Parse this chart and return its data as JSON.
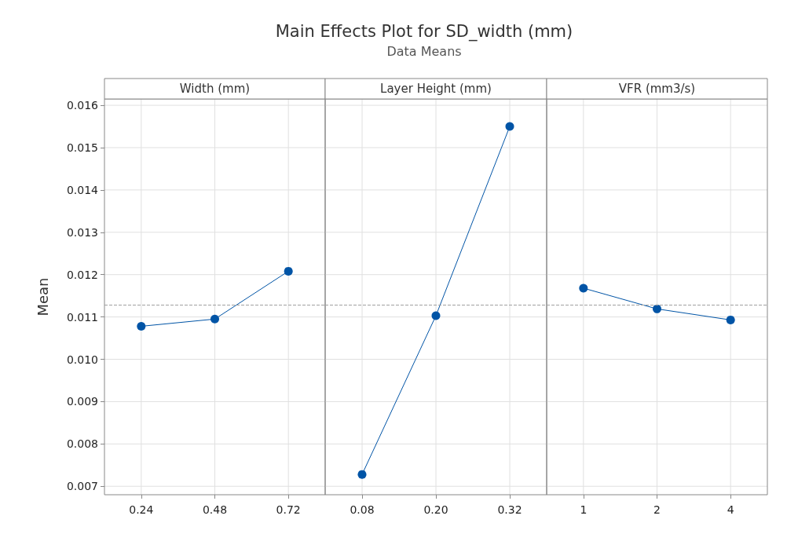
{
  "chart_data": [
    {
      "type": "line",
      "xlabel": "Width (mm)",
      "ylabel": "Mean",
      "categories": [
        "0.24",
        "0.48",
        "0.72"
      ],
      "series": [
        {
          "color": "#0054a6",
          "values": [
            0.01078,
            0.01095,
            0.01208
          ]
        }
      ],
      "ylim": [
        0.0068,
        0.01615
      ],
      "yticks": [
        0.007,
        0.008,
        0.009,
        {
          "value": 0.01,
          "label": "0.010"
        },
        0.011,
        0.012,
        0.013,
        0.014,
        0.015,
        0.016
      ],
      "grid": true,
      "marker": "circle",
      "line_style": "solid",
      "ref_lines": [
        {
          "axis": "y",
          "value": 0.01129,
          "color": "#a0a0a0",
          "line_style": "dashed"
        }
      ]
    },
    {
      "type": "line",
      "title": "Main Effects Plot for SD_width (mm)",
      "subtitle": "Data Means",
      "xlabel": "Layer Height (mm)",
      "categories": [
        "0.08",
        "0.20",
        "0.32"
      ],
      "series": [
        {
          "color": "#0054a6",
          "values": [
            0.00728,
            0.01103,
            0.0155
          ]
        }
      ],
      "ylim": [
        0.0068,
        0.01615
      ],
      "yticks": [
        0.007,
        0.008,
        0.009,
        0.01,
        0.011,
        0.012,
        0.013,
        0.014,
        0.015,
        0.016
      ],
      "tick_labels": "x",
      "grid": true,
      "marker": "circle",
      "line_style": "solid",
      "ref_lines": [
        {
          "axis": "y",
          "value": 0.01129,
          "color": "#a0a0a0",
          "line_style": "dashed"
        }
      ]
    },
    {
      "type": "line",
      "xlabel": "VFR (mm3/s)",
      "categories": [
        "1",
        "2",
        "4"
      ],
      "series": [
        {
          "color": "#0054a6",
          "values": [
            0.01168,
            0.01119,
            0.01093
          ]
        }
      ],
      "ylim": [
        0.0068,
        0.01615
      ],
      "yticks": [
        0.007,
        0.008,
        0.009,
        0.01,
        0.011,
        0.012,
        0.013,
        0.014,
        0.015,
        0.016
      ],
      "tick_labels": "x",
      "grid": true,
      "marker": "circle",
      "line_style": "solid",
      "ref_lines": [
        {
          "axis": "y",
          "value": 0.01129,
          "color": "#a0a0a0",
          "line_style": "dashed"
        }
      ]
    }
  ]
}
